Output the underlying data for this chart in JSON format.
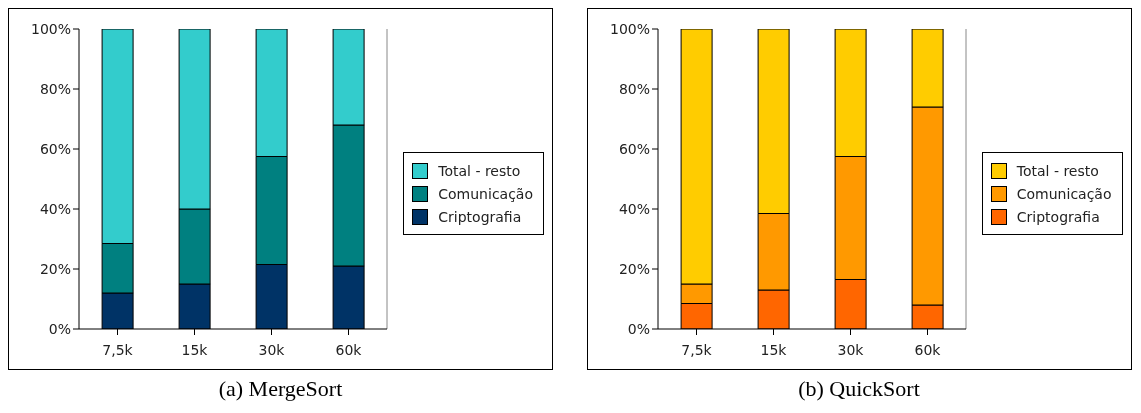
{
  "chart_data": [
    {
      "type": "bar",
      "title": "(a) MergeSort",
      "stacked": true,
      "categories": [
        "7,5k",
        "15k",
        "30k",
        "60k"
      ],
      "series": [
        {
          "name": "Criptografia",
          "color": "#003366",
          "values": [
            12,
            15,
            21.5,
            21
          ]
        },
        {
          "name": "Comunicação",
          "color": "#008080",
          "values": [
            16.5,
            25,
            36,
            47
          ]
        },
        {
          "name": "Total - resto",
          "color": "#33cccc",
          "values": [
            71.5,
            60,
            42.5,
            32
          ]
        }
      ],
      "ylim": [
        0,
        100
      ],
      "yticks": [
        {
          "value": 0,
          "label": "0%"
        },
        {
          "value": 20,
          "label": "20%"
        },
        {
          "value": 40,
          "label": "40%"
        },
        {
          "value": 60,
          "label": "60%"
        },
        {
          "value": 80,
          "label": "80%"
        },
        {
          "value": 100,
          "label": "100%"
        }
      ],
      "grid": false,
      "legend": "right"
    },
    {
      "type": "bar",
      "title": "(b) QuickSort",
      "stacked": true,
      "categories": [
        "7,5k",
        "15k",
        "30k",
        "60k"
      ],
      "series": [
        {
          "name": "Criptografia",
          "color": "#ff6600",
          "values": [
            8.5,
            13,
            16.5,
            8
          ]
        },
        {
          "name": "Comunicação",
          "color": "#ff9900",
          "values": [
            6.5,
            25.5,
            41,
            66
          ]
        },
        {
          "name": "Total - resto",
          "color": "#ffcc00",
          "values": [
            85,
            61.5,
            42.5,
            26
          ]
        }
      ],
      "ylim": [
        0,
        100
      ],
      "yticks": [
        {
          "value": 0,
          "label": "0%"
        },
        {
          "value": 20,
          "label": "20%"
        },
        {
          "value": 40,
          "label": "40%"
        },
        {
          "value": 60,
          "label": "60%"
        },
        {
          "value": 80,
          "label": "80%"
        },
        {
          "value": 100,
          "label": "100%"
        }
      ],
      "grid": false,
      "legend": "right"
    }
  ]
}
